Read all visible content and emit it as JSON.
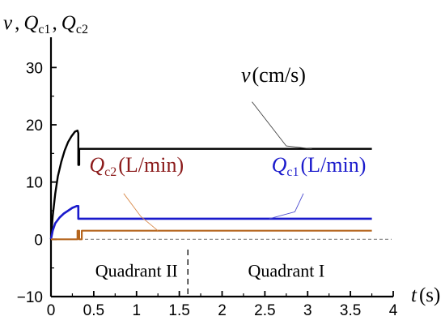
{
  "chart_data": {
    "type": "line",
    "y_title": {
      "v": "v",
      "q1": "Q",
      "q1_sub": "c1",
      "q2": "Q",
      "q2_sub": "c2",
      "sep": ","
    },
    "x_title": {
      "t": "t",
      "unit": "(s)"
    },
    "xlim": [
      0,
      4
    ],
    "ylim": [
      -10,
      35
    ],
    "x_ticks": [
      {
        "value": 0,
        "label": "0"
      },
      {
        "value": 0.5,
        "label": "0.5"
      },
      {
        "value": 1,
        "label": "1"
      },
      {
        "value": 1.5,
        "label": "1.5"
      },
      {
        "value": 2,
        "label": "2"
      },
      {
        "value": 2.5,
        "label": "2.5"
      },
      {
        "value": 3,
        "label": "3"
      },
      {
        "value": 3.5,
        "label": "3.5"
      },
      {
        "value": 4,
        "label": "4"
      }
    ],
    "y_ticks": [
      {
        "value": -10,
        "label": "−10"
      },
      {
        "value": 0,
        "label": "0"
      },
      {
        "value": 10,
        "label": "10"
      },
      {
        "value": 20,
        "label": "20"
      },
      {
        "value": 30,
        "label": "30"
      }
    ],
    "zero_line": {
      "y": 0,
      "color": "#808080"
    },
    "divider_x": 1.6,
    "regions": [
      {
        "label": "Quadrant II",
        "x": 1.0,
        "y": -6.5
      },
      {
        "label": "Quadrant I",
        "x": 2.75,
        "y": -6.5
      }
    ],
    "series": [
      {
        "name": "v",
        "unit": "(cm/s)",
        "color": "#000000",
        "x": [
          0,
          0.02,
          0.05,
          0.08,
          0.12,
          0.16,
          0.2,
          0.24,
          0.28,
          0.31,
          0.32,
          0.32,
          0.33,
          0.33,
          0.4,
          1,
          2,
          3,
          3.75
        ],
        "y": [
          0,
          4,
          8,
          11,
          13.5,
          15.5,
          17,
          18,
          18.8,
          19,
          18.5,
          13,
          13,
          15.8,
          15.8,
          15.8,
          15.8,
          15.8,
          15.8
        ],
        "label": {
          "x": 2.6,
          "y": 27.5
        },
        "leader": [
          [
            2.35,
            24
          ],
          [
            2.75,
            16.3
          ],
          [
            3.05,
            15.8
          ]
        ]
      },
      {
        "name": "Q",
        "sub": "c1",
        "unit": "(L/min)",
        "color": "#1a1acc",
        "x": [
          0,
          0.02,
          0.05,
          0.1,
          0.15,
          0.2,
          0.25,
          0.3,
          0.32,
          0.32,
          0.4,
          1,
          2,
          3,
          3.75
        ],
        "y": [
          0,
          1.5,
          2.8,
          3.8,
          4.5,
          5,
          5.5,
          5.8,
          5.8,
          3.6,
          3.6,
          3.6,
          3.6,
          3.6,
          3.6
        ],
        "label": {
          "x": 3.13,
          "y": 11.8
        },
        "leader": [
          [
            2.95,
            8
          ],
          [
            2.85,
            4.8
          ],
          [
            2.55,
            3.6
          ]
        ]
      },
      {
        "name": "Q",
        "sub": "c2",
        "unit": "(L/min)",
        "color": "#b5651d",
        "x": [
          0,
          0.31,
          0.31,
          0.33,
          0.33,
          0.36,
          0.36,
          1,
          2,
          3,
          3.75
        ],
        "y": [
          0,
          0,
          1.5,
          1.5,
          0,
          0,
          1.5,
          1.5,
          1.5,
          1.5,
          1.5
        ],
        "label": {
          "x": 1.0,
          "y": 11.8
        },
        "leader": [
          [
            0.85,
            8
          ],
          [
            1.05,
            4
          ],
          [
            1.25,
            1.5
          ]
        ]
      }
    ],
    "series_labels": [
      {
        "series": 0,
        "name": "v",
        "unit": "(cm/s)",
        "color": "#000000"
      },
      {
        "series": 1,
        "name": "Q",
        "sub": "c1",
        "unit": "(L/min)",
        "color": "#1a1acc"
      },
      {
        "series": 2,
        "name": "Q",
        "sub": "c2",
        "unit": "(L/min)",
        "color": "#8b1a1a"
      }
    ]
  }
}
